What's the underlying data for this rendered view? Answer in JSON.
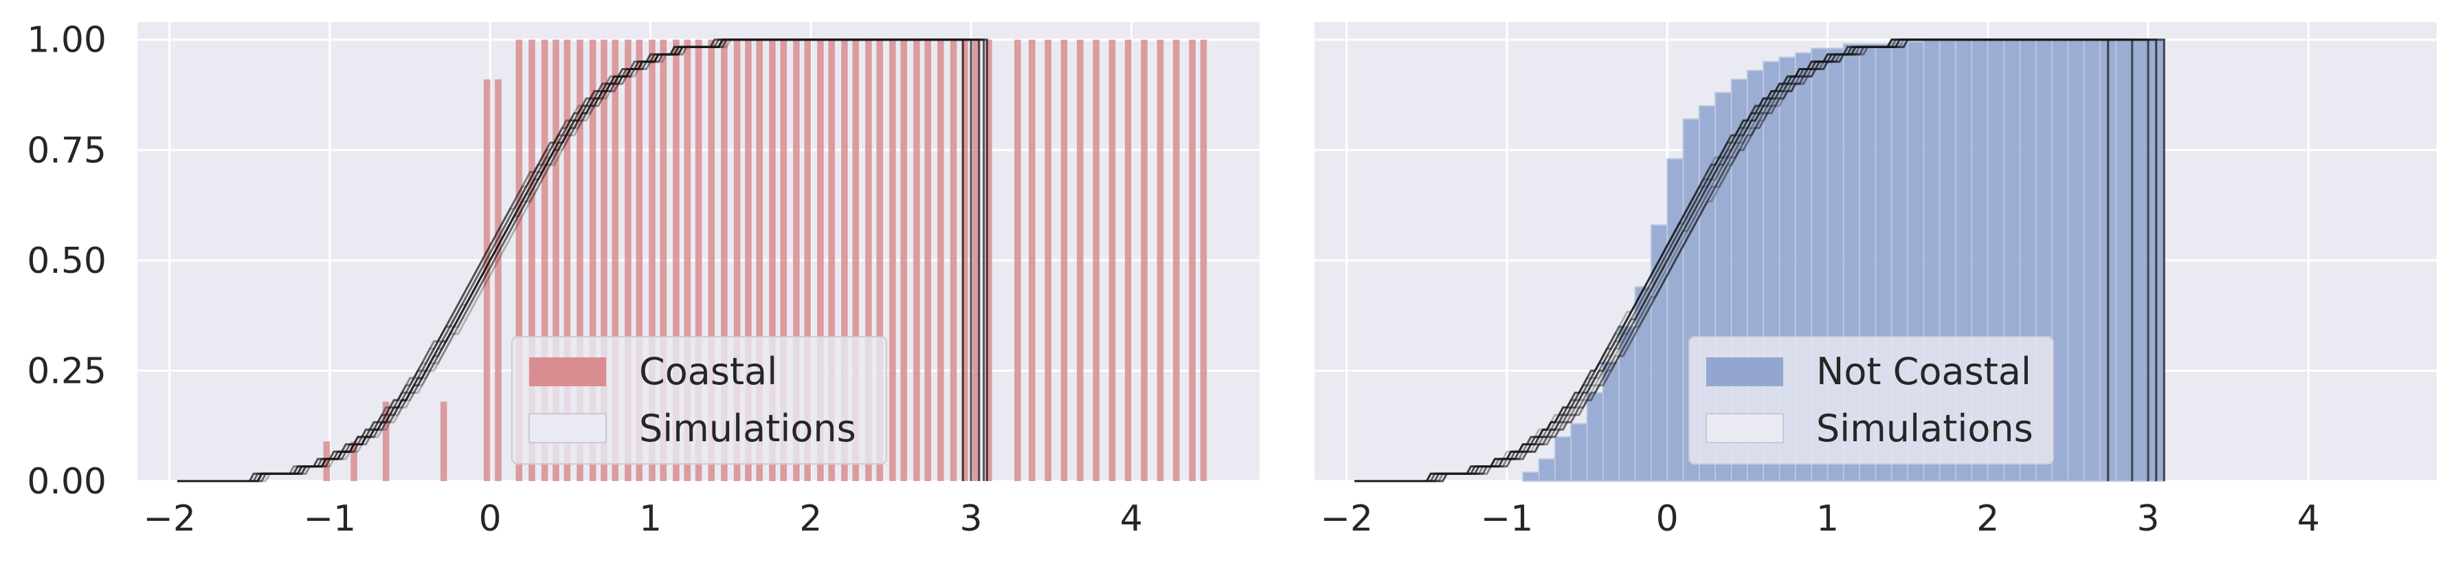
{
  "chart_data": [
    {
      "type": "histogram",
      "panel": "left",
      "title": "",
      "xlabel": "",
      "ylabel": "",
      "xlim": [
        -2.2,
        4.8
      ],
      "ylim": [
        0,
        1.04
      ],
      "x_ticks": [
        "−2",
        "−1",
        "0",
        "1",
        "2",
        "3",
        "4"
      ],
      "x_tick_values": [
        -2,
        -1,
        0,
        1,
        2,
        3,
        4
      ],
      "y_ticks": [
        "0.00",
        "0.25",
        "0.50",
        "0.75",
        "1.00"
      ],
      "y_tick_values": [
        0,
        0.25,
        0.5,
        0.75,
        1.0
      ],
      "grid": true,
      "legend_position": "lower-center",
      "legend": [
        "Coastal",
        "Simulations"
      ],
      "colors": {
        "bars": "#d98d91",
        "simulations": "#1a1a1a",
        "background": "#eaeaf2",
        "grid": "#ffffff"
      },
      "bars": {
        "name": "Coastal",
        "bin_width": 0.0667,
        "x": [
          -1.04,
          -0.87,
          -0.67,
          -0.31,
          -0.04,
          0.03,
          0.16,
          0.24,
          0.32,
          0.39,
          0.46,
          0.54,
          0.62,
          0.69,
          0.76,
          0.84,
          0.91,
          0.99,
          1.06,
          1.14,
          1.21,
          1.28,
          1.36,
          1.44,
          1.52,
          1.59,
          1.66,
          1.74,
          1.81,
          1.89,
          1.96,
          2.04,
          2.11,
          2.19,
          2.26,
          2.34,
          2.41,
          2.49,
          2.56,
          2.64,
          2.71,
          2.79,
          2.87,
          2.94,
          3.01,
          3.09,
          3.27,
          3.36,
          3.46,
          3.56,
          3.66,
          3.76,
          3.86,
          3.96,
          4.06,
          4.16,
          4.26,
          4.36,
          4.43
        ],
        "values": [
          0.09,
          0.09,
          0.18,
          0.18,
          0.91,
          0.91,
          1.0,
          1.0,
          1.0,
          1.0,
          1.0,
          1.0,
          1.0,
          1.0,
          1.0,
          1.0,
          1.0,
          1.0,
          1.0,
          1.0,
          1.0,
          1.0,
          1.0,
          1.0,
          1.0,
          1.0,
          1.0,
          1.0,
          1.0,
          1.0,
          1.0,
          1.0,
          1.0,
          1.0,
          1.0,
          1.0,
          1.0,
          1.0,
          1.0,
          1.0,
          1.0,
          1.0,
          1.0,
          1.0,
          1.0,
          1.0,
          1.0,
          1.0,
          1.0,
          1.0,
          1.0,
          1.0,
          1.0,
          1.0,
          1.0,
          1.0,
          1.0,
          1.0,
          1.0
        ]
      },
      "simulations": {
        "name": "Simulations",
        "count": 20,
        "cdf_mean": 0,
        "cdf_sd": 0.6,
        "x_max": [
          2.95,
          3.0,
          3.05,
          3.08,
          3.1
        ]
      }
    },
    {
      "type": "histogram",
      "panel": "right",
      "title": "",
      "xlabel": "",
      "ylabel": "",
      "xlim": [
        -2.2,
        4.8
      ],
      "ylim": [
        0,
        1.04
      ],
      "x_ticks": [
        "−2",
        "−1",
        "0",
        "1",
        "2",
        "3",
        "4"
      ],
      "x_tick_values": [
        -2,
        -1,
        0,
        1,
        2,
        3,
        4
      ],
      "y_ticks": [],
      "grid": true,
      "legend_position": "lower-center",
      "legend": [
        "Not Coastal",
        "Simulations"
      ],
      "colors": {
        "bars": "#92a6cf",
        "simulations": "#1a1a1a",
        "background": "#eaeaf2",
        "grid": "#ffffff"
      },
      "bars": {
        "name": "Not Coastal",
        "bin_edges": [
          -0.9,
          -0.8,
          -0.7,
          -0.6,
          -0.5,
          -0.4,
          -0.3,
          -0.2,
          -0.1,
          0.0,
          0.1,
          0.2,
          0.3,
          0.4,
          0.5,
          0.6,
          0.7,
          0.8,
          0.9,
          1.0,
          1.1,
          1.2,
          1.3,
          1.4,
          1.5,
          1.6,
          1.7,
          1.8,
          1.9,
          2.0,
          2.1,
          2.2,
          2.3,
          2.4,
          2.5,
          2.6,
          2.7,
          2.8,
          2.9,
          3.0,
          3.1
        ],
        "values": [
          0.02,
          0.05,
          0.1,
          0.13,
          0.2,
          0.27,
          0.35,
          0.44,
          0.58,
          0.73,
          0.82,
          0.85,
          0.88,
          0.91,
          0.93,
          0.95,
          0.96,
          0.97,
          0.98,
          0.98,
          0.99,
          0.99,
          0.99,
          0.995,
          0.995,
          0.998,
          0.998,
          1.0,
          1.0,
          1.0,
          1.0,
          1.0,
          1.0,
          1.0,
          1.0,
          1.0,
          1.0,
          1.0,
          1.0,
          1.0
        ]
      },
      "simulations": {
        "name": "Simulations",
        "count": 20,
        "cdf_mean": 0,
        "cdf_sd": 0.6,
        "x_max": [
          2.75,
          2.9,
          3.0,
          3.05,
          3.1
        ]
      }
    }
  ]
}
